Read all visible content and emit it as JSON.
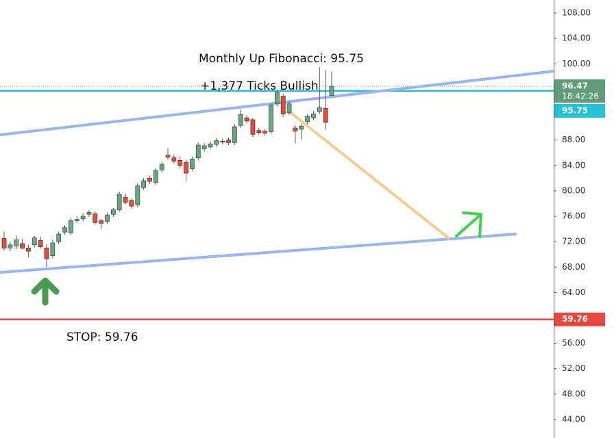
{
  "chart_data": {
    "type": "candlestick",
    "open": [
      72.5,
      71.0,
      71.3,
      71.7,
      71.0,
      71.5,
      72.2,
      71.0,
      69.8,
      72.0,
      73.5,
      73.4,
      75.3,
      75.6,
      76.3,
      76.4,
      75.3,
      75.2,
      76.3,
      77.0,
      79.0,
      78.5,
      77.8,
      80.5,
      82.0,
      81.3,
      83.3,
      85.6,
      85.2,
      84.8,
      84.5,
      83.5,
      85.2,
      86.6,
      86.9,
      87.3,
      87.8,
      88.0,
      87.6,
      90.3,
      91.5,
      91.2,
      89.5,
      89.4,
      89.3,
      93.7,
      94.9,
      92.3,
      89.9,
      89.7,
      90.9,
      91.5,
      92.5,
      93.0,
      95.0
    ],
    "high": [
      73.6,
      72.0,
      73.0,
      72.4,
      71.5,
      72.9,
      72.8,
      71.6,
      72.3,
      73.6,
      74.6,
      75.8,
      76.0,
      76.5,
      77.0,
      76.8,
      75.6,
      76.6,
      77.3,
      79.9,
      79.6,
      78.8,
      81.2,
      82.0,
      82.4,
      83.6,
      84.6,
      86.7,
      85.7,
      85.4,
      84.9,
      85.4,
      87.6,
      87.5,
      87.8,
      88.3,
      88.2,
      88.4,
      90.5,
      92.8,
      91.9,
      91.5,
      89.9,
      89.7,
      93.9,
      96.0,
      95.3,
      94.2,
      90.3,
      90.6,
      92.1,
      92.6,
      99.5,
      99.0,
      98.8
    ],
    "low": [
      70.6,
      70.5,
      70.8,
      70.8,
      69.5,
      71.1,
      70.9,
      68.0,
      69.4,
      71.6,
      73.1,
      73.0,
      74.9,
      75.2,
      75.9,
      74.7,
      74.0,
      74.8,
      75.9,
      76.7,
      77.8,
      77.2,
      77.4,
      80.1,
      81.1,
      80.9,
      82.9,
      84.9,
      84.3,
      83.6,
      81.5,
      83.1,
      84.8,
      86.2,
      86.5,
      86.9,
      87.3,
      87.2,
      87.2,
      89.9,
      90.6,
      88.5,
      88.8,
      88.7,
      88.9,
      93.3,
      91.7,
      91.9,
      87.5,
      88.1,
      90.5,
      91.1,
      92.1,
      89.6,
      95.0
    ],
    "close": [
      71.0,
      71.5,
      72.3,
      71.0,
      70.5,
      72.6,
      71.2,
      69.3,
      71.8,
      73.2,
      74.2,
      75.3,
      75.5,
      76.0,
      76.6,
      75.0,
      74.9,
      76.2,
      77.0,
      79.5,
      78.2,
      77.6,
      80.8,
      81.6,
      81.5,
      83.2,
      84.2,
      85.3,
      84.7,
      84.0,
      82.8,
      85.0,
      87.2,
      87.1,
      87.4,
      87.9,
      87.7,
      87.6,
      90.1,
      92.0,
      91.0,
      88.9,
      89.2,
      89.1,
      93.5,
      95.5,
      92.1,
      93.7,
      89.4,
      90.2,
      91.7,
      92.1,
      93.1,
      90.8,
      96.47
    ],
    "up_color": "#6ba583",
    "down_color": "#d75442",
    "xlim": [
      -0.68,
      90.6
    ],
    "ylim": [
      41.09,
      110.05
    ],
    "yticks": [
      {
        "value": 44,
        "label": "44.00"
      },
      {
        "value": 48,
        "label": "48.00"
      },
      {
        "value": 52,
        "label": "52.00"
      },
      {
        "value": 56,
        "label": "56.00"
      },
      {
        "value": 60,
        "label": "60.00"
      },
      {
        "value": 64,
        "label": "64.00"
      },
      {
        "value": 68,
        "label": "68.00"
      },
      {
        "value": 72,
        "label": "72.00"
      },
      {
        "value": 76,
        "label": "76.00"
      },
      {
        "value": 80,
        "label": "80.00"
      },
      {
        "value": 84,
        "label": "84.00"
      },
      {
        "value": 88,
        "label": "88.00"
      },
      {
        "value": 92,
        "label": "92.00"
      },
      {
        "value": 96,
        "label": "96.00"
      },
      {
        "value": 100,
        "label": "100.00"
      },
      {
        "value": 104,
        "label": "104.00"
      },
      {
        "value": 108,
        "label": "108.00"
      }
    ],
    "price_lines": [
      {
        "value": 96.47,
        "label": "96.47",
        "sublabel": "18:42:26",
        "color": "#5f9e78",
        "dotted": true
      },
      {
        "value": 95.75,
        "label": "95.75",
        "color": "#22c3d6",
        "dotted": false
      },
      {
        "value": 59.76,
        "label": "59.76",
        "color": "#e8483f",
        "dotted": false
      }
    ],
    "trendlines": [
      {
        "color": "#9ab4f5",
        "x": [
          -0.68,
          90.6
        ],
        "values": [
          88.82,
          98.84
        ]
      },
      {
        "color": "#9ab4f5",
        "x": [
          -0.68,
          84.3
        ],
        "values": [
          67.16,
          73.2
        ]
      },
      {
        "color": "#fbcb8b",
        "x": [
          47.3,
          73.3
        ],
        "values": [
          92.27,
          72.55
        ]
      }
    ],
    "annotations": [
      {
        "text": "Monthly Up Fibonacci: 95.75"
      },
      {
        "text": "+1,377 Ticks Bullish"
      },
      {
        "text": "STOP: 59.76"
      }
    ]
  }
}
